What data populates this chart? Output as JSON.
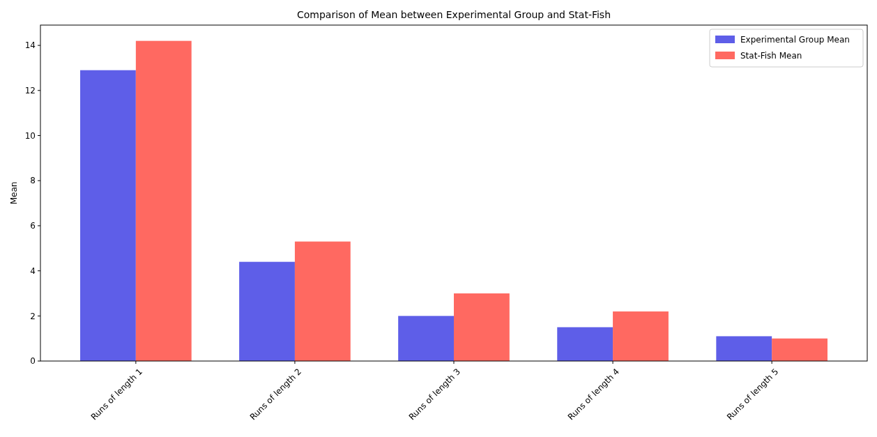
{
  "chart_data": {
    "type": "bar",
    "title": "Comparison of Mean between Experimental Group and Stat-Fish",
    "ylabel": "Mean",
    "categories": [
      "Runs of length 1",
      "Runs of length 2",
      "Runs of length 3",
      "Runs of length 4",
      "Runs of length 5"
    ],
    "series": [
      {
        "name": "Experimental Group Mean",
        "color": "#5e5ee8",
        "values": [
          12.9,
          4.4,
          2.0,
          1.5,
          1.1
        ]
      },
      {
        "name": "Stat-Fish Mean",
        "color": "#ff6961",
        "values": [
          14.2,
          5.3,
          3.0,
          2.2,
          1.0
        ]
      }
    ],
    "ylim": [
      0,
      14.9
    ],
    "yticks": [
      0,
      2,
      4,
      6,
      8,
      10,
      12,
      14
    ],
    "legend": "top right",
    "grid": false
  }
}
